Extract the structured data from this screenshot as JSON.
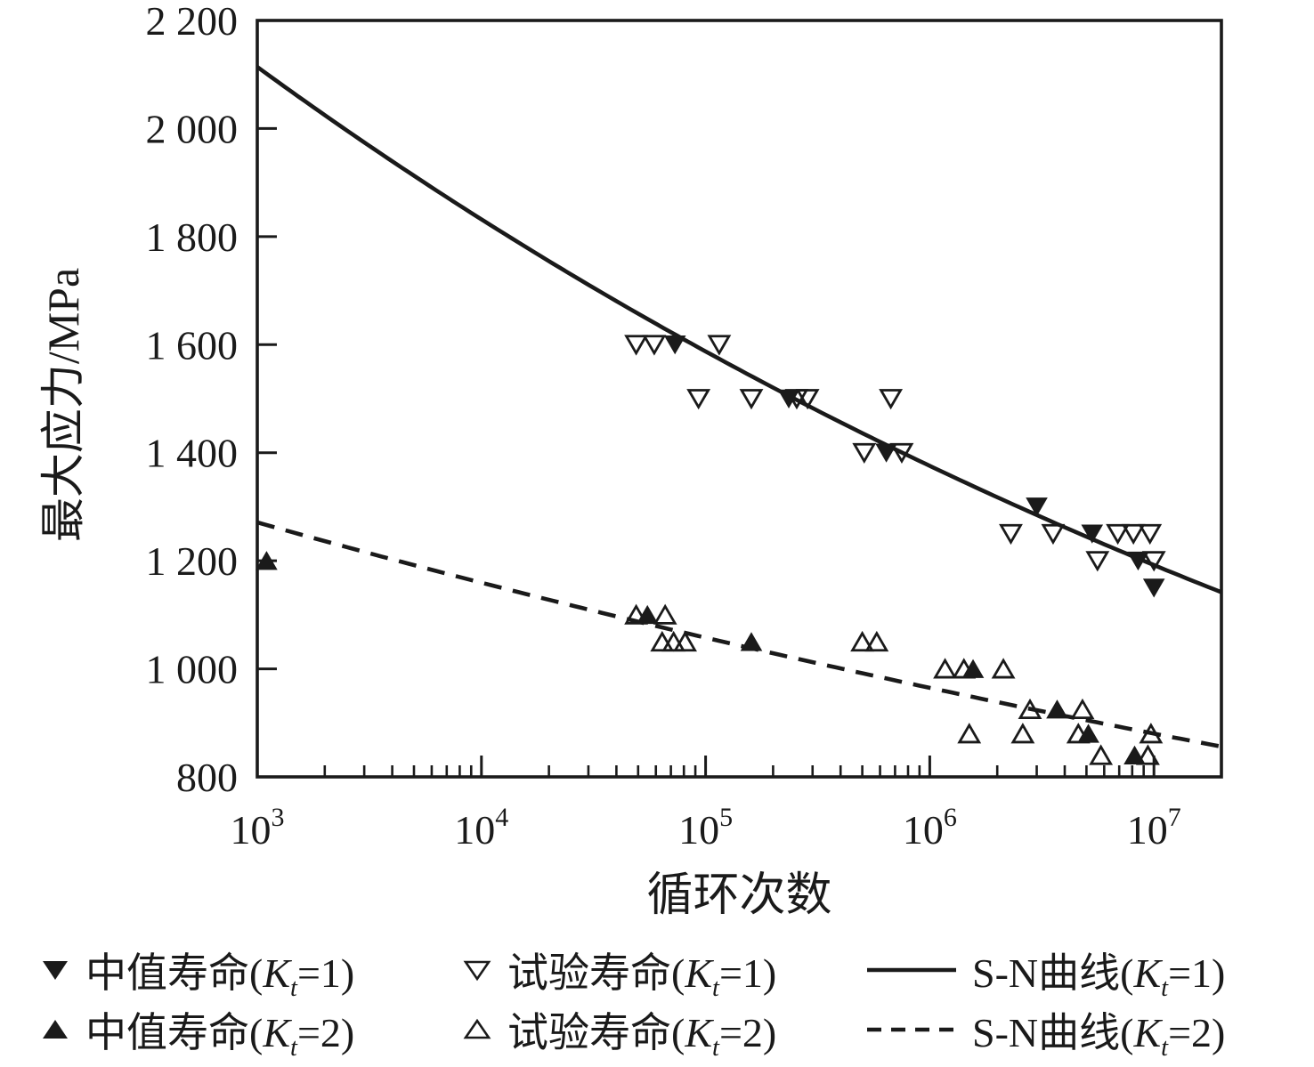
{
  "colors": {
    "ink": "#1a1a1a",
    "background": "#ffffff"
  },
  "chart_data": {
    "type": "scatter",
    "title": "",
    "xlabel": "循环次数",
    "ylabel": "最大应力/MPa",
    "x_scale": "log",
    "x_range": [
      1000,
      20000000
    ],
    "y_range": [
      800,
      2200
    ],
    "grid": false,
    "legend_position": "below",
    "x_ticks": [
      {
        "base": "10",
        "exp": "3",
        "value": 1000
      },
      {
        "base": "10",
        "exp": "4",
        "value": 10000
      },
      {
        "base": "10",
        "exp": "5",
        "value": 100000
      },
      {
        "base": "10",
        "exp": "6",
        "value": 1000000
      },
      {
        "base": "10",
        "exp": "7",
        "value": 10000000
      }
    ],
    "y_ticks": [
      {
        "label": "800",
        "value": 800
      },
      {
        "label": "1 000",
        "value": 1000
      },
      {
        "label": "1 200",
        "value": 1200
      },
      {
        "label": "1 400",
        "value": 1400
      },
      {
        "label": "1 600",
        "value": 1600
      },
      {
        "label": "1 800",
        "value": 1800
      },
      {
        "label": "2 000",
        "value": 2000
      },
      {
        "label": "2 200",
        "value": 2200
      }
    ],
    "series": [
      {
        "key": "median_kt1",
        "name": "中值寿命(Kt=1)",
        "marker": "triangle-down-filled",
        "points": [
          [
            73000,
            1600
          ],
          [
            235000,
            1500
          ],
          [
            640000,
            1400
          ],
          [
            3000000,
            1300
          ],
          [
            5300000,
            1250
          ],
          [
            8500000,
            1200
          ],
          [
            10000000,
            1150
          ]
        ]
      },
      {
        "key": "test_kt1",
        "name": "试验寿命(Kt=1)",
        "marker": "triangle-down-open",
        "points": [
          [
            49000,
            1600
          ],
          [
            59000,
            1600
          ],
          [
            115000,
            1600
          ],
          [
            93000,
            1500
          ],
          [
            160000,
            1500
          ],
          [
            255000,
            1500
          ],
          [
            285000,
            1500
          ],
          [
            670000,
            1500
          ],
          [
            510000,
            1400
          ],
          [
            750000,
            1400
          ],
          [
            2300000,
            1250
          ],
          [
            3550000,
            1250
          ],
          [
            6900000,
            1250
          ],
          [
            8100000,
            1250
          ],
          [
            9600000,
            1250
          ],
          [
            5600000,
            1200
          ],
          [
            10000000,
            1200
          ]
        ]
      },
      {
        "key": "median_kt2",
        "name": "中值寿命(Kt=2)",
        "marker": "triangle-up-filled",
        "points": [
          [
            1100,
            1200
          ],
          [
            55000,
            1100
          ],
          [
            160000,
            1050
          ],
          [
            1560000,
            1000
          ],
          [
            3700000,
            925
          ],
          [
            5100000,
            880
          ],
          [
            8200000,
            840
          ]
        ]
      },
      {
        "key": "test_kt2",
        "name": "试验寿命(Kt=2)",
        "marker": "triangle-up-open",
        "points": [
          [
            49000,
            1100
          ],
          [
            66000,
            1100
          ],
          [
            64000,
            1050
          ],
          [
            72000,
            1050
          ],
          [
            81000,
            1050
          ],
          [
            500000,
            1050
          ],
          [
            580000,
            1050
          ],
          [
            1170000,
            1000
          ],
          [
            1420000,
            1000
          ],
          [
            2130000,
            1000
          ],
          [
            2800000,
            925
          ],
          [
            4800000,
            925
          ],
          [
            1500000,
            880
          ],
          [
            2600000,
            880
          ],
          [
            4600000,
            880
          ],
          [
            9700000,
            880
          ],
          [
            5800000,
            840
          ],
          [
            9400000,
            840
          ]
        ]
      },
      {
        "key": "curve_kt1",
        "name": "S-N曲线(Kt=1)",
        "type": "curve",
        "style": "solid",
        "power_law": {
          "n0": 1000,
          "n_end": 20000000,
          "s0": 2114,
          "exponent": -0.0622
        }
      },
      {
        "key": "curve_kt2",
        "name": "S-N曲线(Kt=2)",
        "type": "curve",
        "style": "dashed",
        "power_law": {
          "n0": 1000,
          "n_end": 20000000,
          "s0": 1271,
          "exponent": -0.0399
        }
      }
    ]
  },
  "legend": {
    "rows": [
      {
        "items": [
          {
            "marker": "triangle-down-filled",
            "prefix": "中值寿命(",
            "k": "K",
            "sub": "t",
            "suffix": "=1)"
          },
          {
            "marker": "triangle-down-open",
            "prefix": "试验寿命(",
            "k": "K",
            "sub": "t",
            "suffix": "=1)"
          },
          {
            "marker": "line-solid",
            "prefix": "S-N曲线(",
            "k": "K",
            "sub": "t",
            "suffix": "=1)"
          }
        ]
      },
      {
        "items": [
          {
            "marker": "triangle-up-filled",
            "prefix": "中值寿命(",
            "k": "K",
            "sub": "t",
            "suffix": "=2)"
          },
          {
            "marker": "triangle-up-open",
            "prefix": "试验寿命(",
            "k": "K",
            "sub": "t",
            "suffix": "=2)"
          },
          {
            "marker": "line-dashed",
            "prefix": "S-N曲线(",
            "k": "K",
            "sub": "t",
            "suffix": "=2)"
          }
        ]
      }
    ]
  }
}
